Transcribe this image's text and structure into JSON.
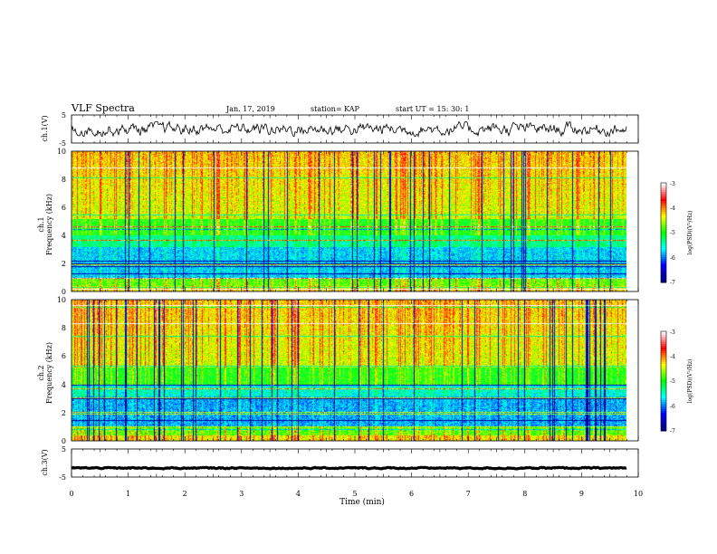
{
  "header": {
    "title": "VLF Spectra",
    "date": "Jan. 17, 2019",
    "station": "station= KAP",
    "start": "start UT =  15: 30: 1"
  },
  "chart_data": [
    {
      "type": "line",
      "name": "channel-1-waveform",
      "ylabel": "ch.1(V)",
      "ylim": [
        -5,
        5
      ],
      "yticks": [
        "5",
        "-5"
      ],
      "xlim": [
        0,
        10
      ],
      "x_span": [
        0,
        9.8
      ],
      "approx_mean": 0,
      "approx_amplitude": 2
    },
    {
      "type": "heatmap",
      "name": "channel-1-spectrogram",
      "ylabel": "ch.1\nFrequency (kHz)",
      "ylim": [
        0,
        10
      ],
      "yticks": [
        "0",
        "2",
        "4",
        "6",
        "8",
        "10"
      ],
      "xlim": [
        0,
        10
      ],
      "x_span": [
        0,
        9.8
      ],
      "colorbar": {
        "label": "log(PSD)(V²/Hz)",
        "range": [
          -7,
          -3
        ],
        "ticks": [
          "-3",
          "-4",
          "-5",
          "-6",
          "-7"
        ]
      }
    },
    {
      "type": "heatmap",
      "name": "channel-2-spectrogram",
      "ylabel": "ch.2\nFrequency (kHz)",
      "ylim": [
        0,
        10
      ],
      "yticks": [
        "0",
        "2",
        "4",
        "6",
        "8",
        "10"
      ],
      "xlim": [
        0,
        10
      ],
      "x_span": [
        0,
        9.8
      ],
      "colorbar": {
        "label": "log(PSD)(V²/Hz)",
        "range": [
          -7,
          -3
        ],
        "ticks": [
          "-3",
          "-4",
          "-5",
          "-6",
          "-7"
        ]
      }
    },
    {
      "type": "line",
      "name": "channel-3-waveform",
      "ylabel": "ch.3(V)",
      "ylim": [
        -5,
        5
      ],
      "yticks": [
        "5",
        "-5"
      ],
      "xlim": [
        0,
        10
      ],
      "x_span": [
        0,
        9.8
      ],
      "approx_mean": -1.8,
      "approx_amplitude": 0.2
    }
  ],
  "x_axis": {
    "label": "Time (min)",
    "ticks": [
      "0",
      "1",
      "2",
      "3",
      "4",
      "5",
      "6",
      "7",
      "8",
      "9",
      "10"
    ]
  },
  "colors": {
    "colormap": [
      "#000080",
      "#0000ff",
      "#00ffff",
      "#00ff00",
      "#ffff00",
      "#ff0000",
      "#ffffff"
    ]
  }
}
